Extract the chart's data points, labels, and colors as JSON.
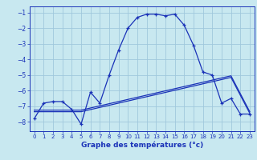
{
  "title": "Graphe des températures (°c)",
  "bg_color": "#c8e8f0",
  "line_color": "#1a32b8",
  "grid_color": "#a0c8dc",
  "xlim": [
    -0.5,
    23.5
  ],
  "ylim": [
    -8.6,
    -0.6
  ],
  "yticks": [
    -8,
    -7,
    -6,
    -5,
    -4,
    -3,
    -2,
    -1
  ],
  "xticks": [
    0,
    1,
    2,
    3,
    4,
    5,
    6,
    7,
    8,
    9,
    10,
    11,
    12,
    13,
    14,
    15,
    16,
    17,
    18,
    19,
    20,
    21,
    22,
    23
  ],
  "curve1_x": [
    0,
    1,
    2,
    3,
    4,
    5,
    6,
    7,
    8,
    9,
    10,
    11,
    12,
    13,
    14,
    15,
    16,
    17,
    18,
    19,
    20,
    21,
    22,
    23
  ],
  "curve1_y": [
    -7.8,
    -6.8,
    -6.7,
    -6.7,
    -7.2,
    -8.15,
    -6.1,
    -6.8,
    -5.0,
    -3.4,
    -2.0,
    -1.3,
    -1.1,
    -1.1,
    -1.2,
    -1.1,
    -1.8,
    -3.1,
    -4.8,
    -5.0,
    -6.8,
    -6.5,
    -7.5,
    -7.5
  ],
  "curve2_x": [
    0,
    5,
    21,
    23
  ],
  "curve2_y": [
    -7.35,
    -7.35,
    -5.15,
    -7.45
  ],
  "curve3_x": [
    0,
    5,
    21,
    23
  ],
  "curve3_y": [
    -7.25,
    -7.25,
    -5.05,
    -7.35
  ]
}
